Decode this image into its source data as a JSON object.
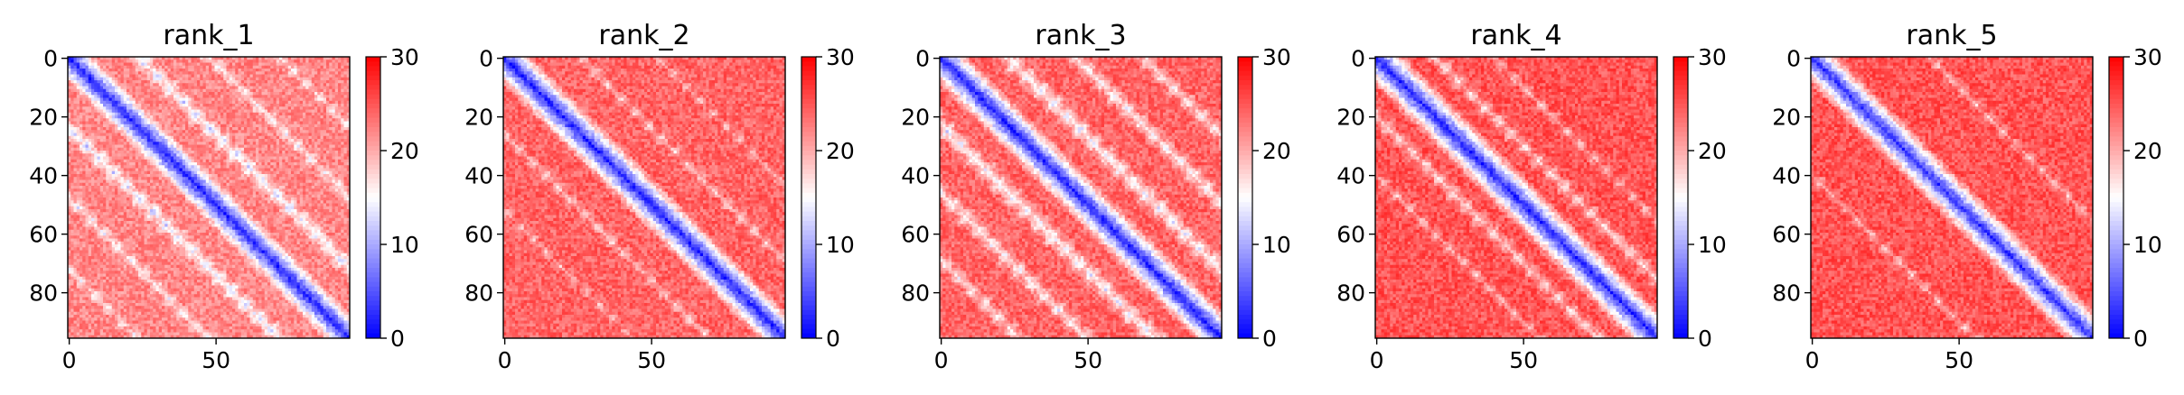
{
  "chart_data": [
    {
      "type": "heatmap",
      "title": "rank_1",
      "n": 96,
      "xticks": [
        0,
        50
      ],
      "yticks": [
        0,
        20,
        40,
        60,
        80
      ],
      "colorbar": {
        "min": 0,
        "max": 30,
        "ticks": [
          0,
          10,
          20,
          30
        ]
      },
      "colormap": [
        "#0000ff",
        "#ffffff",
        "#ff0000"
      ],
      "diagonal_value": 2,
      "background_value": 22,
      "secondary_bands": [
        {
          "offset": 24,
          "value": 12
        },
        {
          "offset": 48,
          "value": 14
        },
        {
          "offset": 72,
          "value": 15
        }
      ]
    },
    {
      "type": "heatmap",
      "title": "rank_2",
      "n": 96,
      "xticks": [
        0,
        50
      ],
      "yticks": [
        0,
        20,
        40,
        60,
        80
      ],
      "colorbar": {
        "min": 0,
        "max": 30,
        "ticks": [
          0,
          10,
          20,
          30
        ]
      },
      "colormap": [
        "#0000ff",
        "#ffffff",
        "#ff0000"
      ],
      "diagonal_value": 2,
      "background_value": 24,
      "secondary_bands": [
        {
          "offset": 26,
          "value": 17
        },
        {
          "offset": 52,
          "value": 18
        }
      ]
    },
    {
      "type": "heatmap",
      "title": "rank_3",
      "n": 96,
      "xticks": [
        0,
        50
      ],
      "yticks": [
        0,
        20,
        40,
        60,
        80
      ],
      "colorbar": {
        "min": 0,
        "max": 30,
        "ticks": [
          0,
          10,
          20,
          30
        ]
      },
      "colormap": [
        "#0000ff",
        "#ffffff",
        "#ff0000"
      ],
      "diagonal_value": 2,
      "background_value": 24,
      "secondary_bands": [
        {
          "offset": 23,
          "value": 13
        },
        {
          "offset": 46,
          "value": 14
        },
        {
          "offset": 69,
          "value": 15
        }
      ]
    },
    {
      "type": "heatmap",
      "title": "rank_4",
      "n": 96,
      "xticks": [
        0,
        50
      ],
      "yticks": [
        0,
        20,
        40,
        60,
        80
      ],
      "colorbar": {
        "min": 0,
        "max": 30,
        "ticks": [
          0,
          10,
          20,
          30
        ]
      },
      "colormap": [
        "#0000ff",
        "#ffffff",
        "#ff0000"
      ],
      "diagonal_value": 2,
      "background_value": 25,
      "secondary_bands": [
        {
          "offset": 20,
          "value": 16
        },
        {
          "offset": 40,
          "value": 18
        }
      ]
    },
    {
      "type": "heatmap",
      "title": "rank_5",
      "n": 96,
      "xticks": [
        0,
        50
      ],
      "yticks": [
        0,
        20,
        40,
        60,
        80
      ],
      "colorbar": {
        "min": 0,
        "max": 30,
        "ticks": [
          0,
          10,
          20,
          30
        ]
      },
      "colormap": [
        "#0000ff",
        "#ffffff",
        "#ff0000"
      ],
      "diagonal_value": 3,
      "background_value": 25,
      "secondary_bands": [
        {
          "offset": 40,
          "value": 18
        }
      ]
    }
  ]
}
